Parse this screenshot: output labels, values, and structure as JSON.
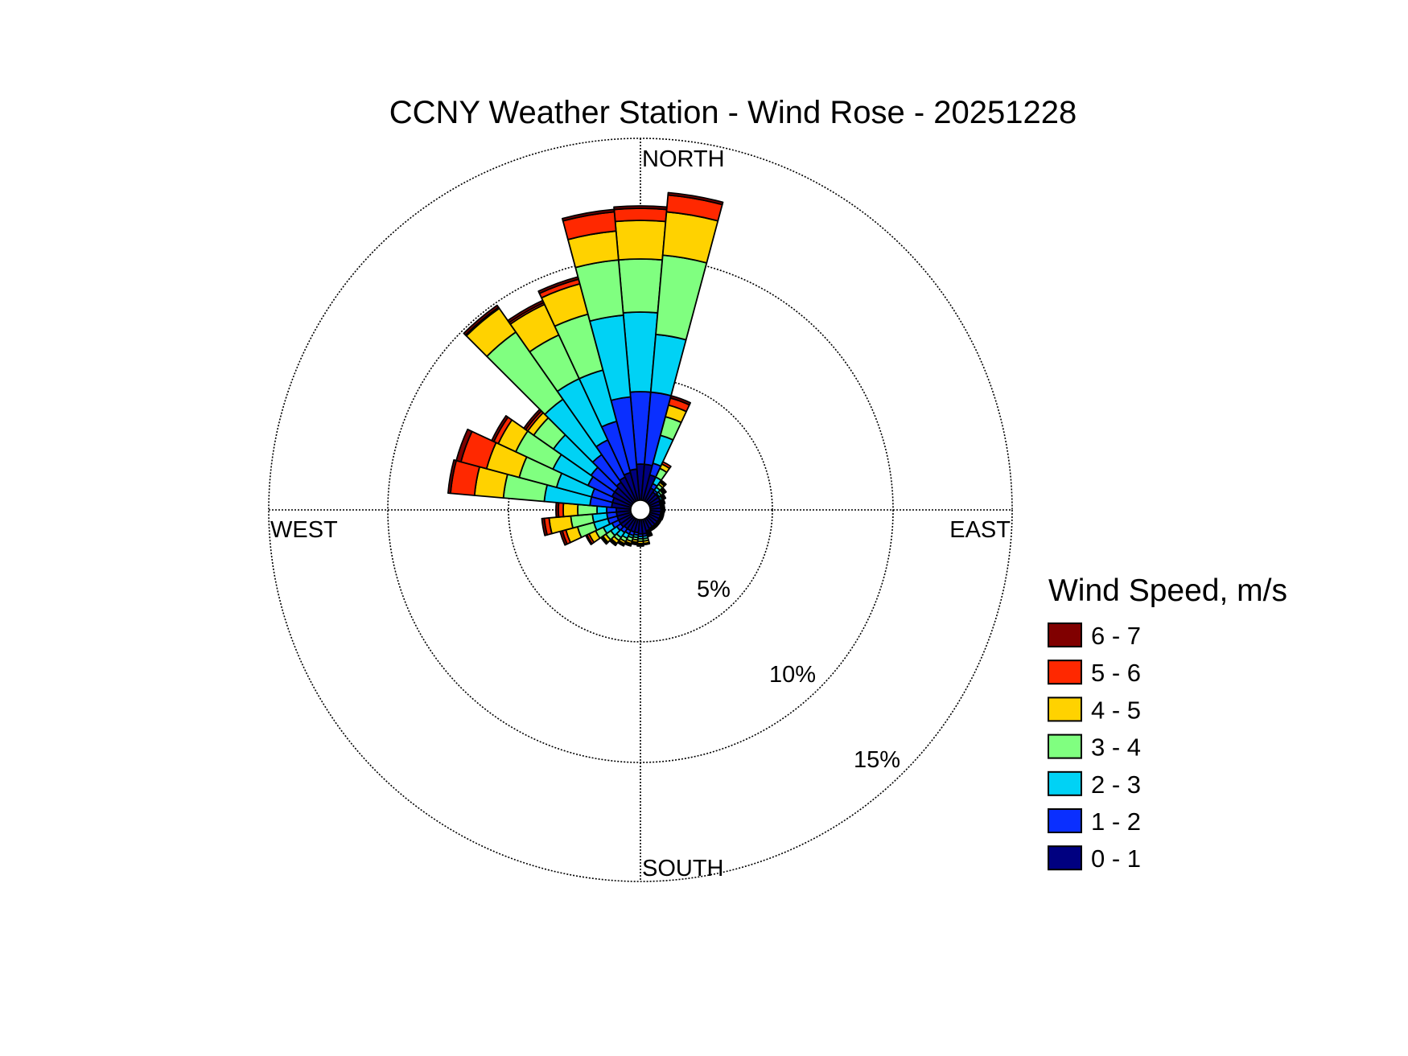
{
  "chart_data": {
    "type": "windrose",
    "title": "CCNY Weather Station - Wind Rose - 20251228",
    "compass_labels": {
      "north": "NORTH",
      "south": "SOUTH",
      "east": "EAST",
      "west": "WEST"
    },
    "ring_labels": [
      "5%",
      "10%",
      "15%"
    ],
    "rings": [
      5,
      10,
      15
    ],
    "r_max": 15,
    "legend_title": "Wind Speed, m/s",
    "bins": [
      {
        "label": "0 - 1",
        "color": "#000080"
      },
      {
        "label": "1 - 2",
        "color": "#0a2fff"
      },
      {
        "label": "2 - 3",
        "color": "#00d2f5"
      },
      {
        "label": "3 - 4",
        "color": "#80ff80"
      },
      {
        "label": "4 - 5",
        "color": "#ffd200"
      },
      {
        "label": "5 - 6",
        "color": "#ff2800"
      },
      {
        "label": "6 - 7",
        "color": "#800000"
      }
    ],
    "sector_width_deg": 10,
    "directions_deg": [
      0,
      10,
      20,
      30,
      40,
      50,
      60,
      70,
      80,
      90,
      100,
      110,
      120,
      130,
      140,
      150,
      160,
      170,
      180,
      190,
      200,
      210,
      220,
      230,
      240,
      250,
      260,
      270,
      280,
      290,
      300,
      310,
      320,
      330,
      340,
      350
    ],
    "cumulative_percent": [
      [
        1.5,
        4.5,
        7.8,
        10.0,
        11.6,
        12.1,
        12.2
      ],
      [
        1.5,
        4.5,
        6.9,
        10.2,
        12.0,
        12.7,
        12.8
      ],
      [
        1.1,
        1.6,
        2.8,
        3.6,
        4.1,
        4.4,
        4.5
      ],
      [
        0.6,
        0.8,
        1.1,
        1.5,
        1.7,
        1.8,
        1.8
      ],
      [
        0.5,
        0.6,
        0.75,
        0.9,
        1.0,
        1.05,
        1.1
      ],
      [
        0.5,
        0.55,
        0.65,
        0.75,
        0.8,
        0.85,
        0.9
      ],
      [
        0.5,
        0.52,
        0.6,
        0.65,
        0.7,
        0.72,
        0.75
      ],
      [
        0.45,
        0.48,
        0.52,
        0.55,
        0.6,
        0.62,
        0.65
      ],
      [
        0.45,
        0.47,
        0.5,
        0.52,
        0.55,
        0.57,
        0.6
      ],
      [
        0.45,
        0.47,
        0.5,
        0.52,
        0.55,
        0.57,
        0.6
      ],
      [
        0.45,
        0.47,
        0.5,
        0.52,
        0.55,
        0.56,
        0.58
      ],
      [
        0.45,
        0.47,
        0.5,
        0.52,
        0.55,
        0.56,
        0.58
      ],
      [
        0.45,
        0.47,
        0.5,
        0.52,
        0.54,
        0.55,
        0.56
      ],
      [
        0.45,
        0.47,
        0.5,
        0.52,
        0.54,
        0.55,
        0.56
      ],
      [
        0.45,
        0.47,
        0.5,
        0.52,
        0.54,
        0.55,
        0.56
      ],
      [
        0.45,
        0.47,
        0.5,
        0.52,
        0.54,
        0.55,
        0.56
      ],
      [
        0.5,
        0.55,
        0.6,
        0.65,
        0.7,
        0.72,
        0.75
      ],
      [
        0.6,
        0.7,
        0.8,
        0.9,
        1.0,
        1.02,
        1.05
      ],
      [
        0.6,
        0.7,
        0.8,
        0.9,
        1.0,
        1.05,
        1.1
      ],
      [
        0.55,
        0.65,
        0.75,
        0.85,
        0.95,
        1.0,
        1.05
      ],
      [
        0.55,
        0.7,
        0.8,
        0.95,
        1.05,
        1.1,
        1.15
      ],
      [
        0.55,
        0.7,
        0.9,
        1.05,
        1.15,
        1.2,
        1.25
      ],
      [
        0.55,
        0.75,
        1.0,
        1.15,
        1.3,
        1.35,
        1.4
      ],
      [
        0.6,
        0.8,
        1.1,
        1.35,
        1.5,
        1.55,
        1.6
      ],
      [
        0.6,
        0.9,
        1.3,
        1.65,
        1.95,
        2.05,
        2.1
      ],
      [
        0.6,
        1.0,
        1.6,
        2.3,
        2.8,
        2.95,
        3.05
      ],
      [
        0.6,
        1.0,
        1.6,
        2.5,
        3.4,
        3.6,
        3.7
      ],
      [
        0.6,
        1.0,
        1.4,
        2.2,
        2.8,
        3.0,
        3.1
      ],
      [
        0.8,
        1.7,
        3.6,
        5.3,
        6.5,
        7.5,
        7.6
      ],
      [
        0.8,
        1.7,
        3.2,
        4.8,
        6.2,
        7.3,
        7.5
      ],
      [
        0.9,
        2.0,
        3.6,
        5.3,
        6.1,
        6.3,
        6.4
      ],
      [
        0.9,
        2.1,
        4.0,
        5.0,
        5.3,
        5.4,
        5.5
      ],
      [
        1.0,
        2.4,
        5.2,
        8.6,
        9.8,
        9.85,
        9.95
      ],
      [
        1.1,
        2.8,
        5.6,
        7.6,
        9.0,
        9.08,
        9.18
      ],
      [
        1.2,
        3.4,
        5.6,
        8.0,
        9.3,
        9.5,
        9.6
      ],
      [
        1.3,
        4.3,
        7.7,
        10.0,
        11.2,
        12.0,
        12.1
      ]
    ]
  }
}
